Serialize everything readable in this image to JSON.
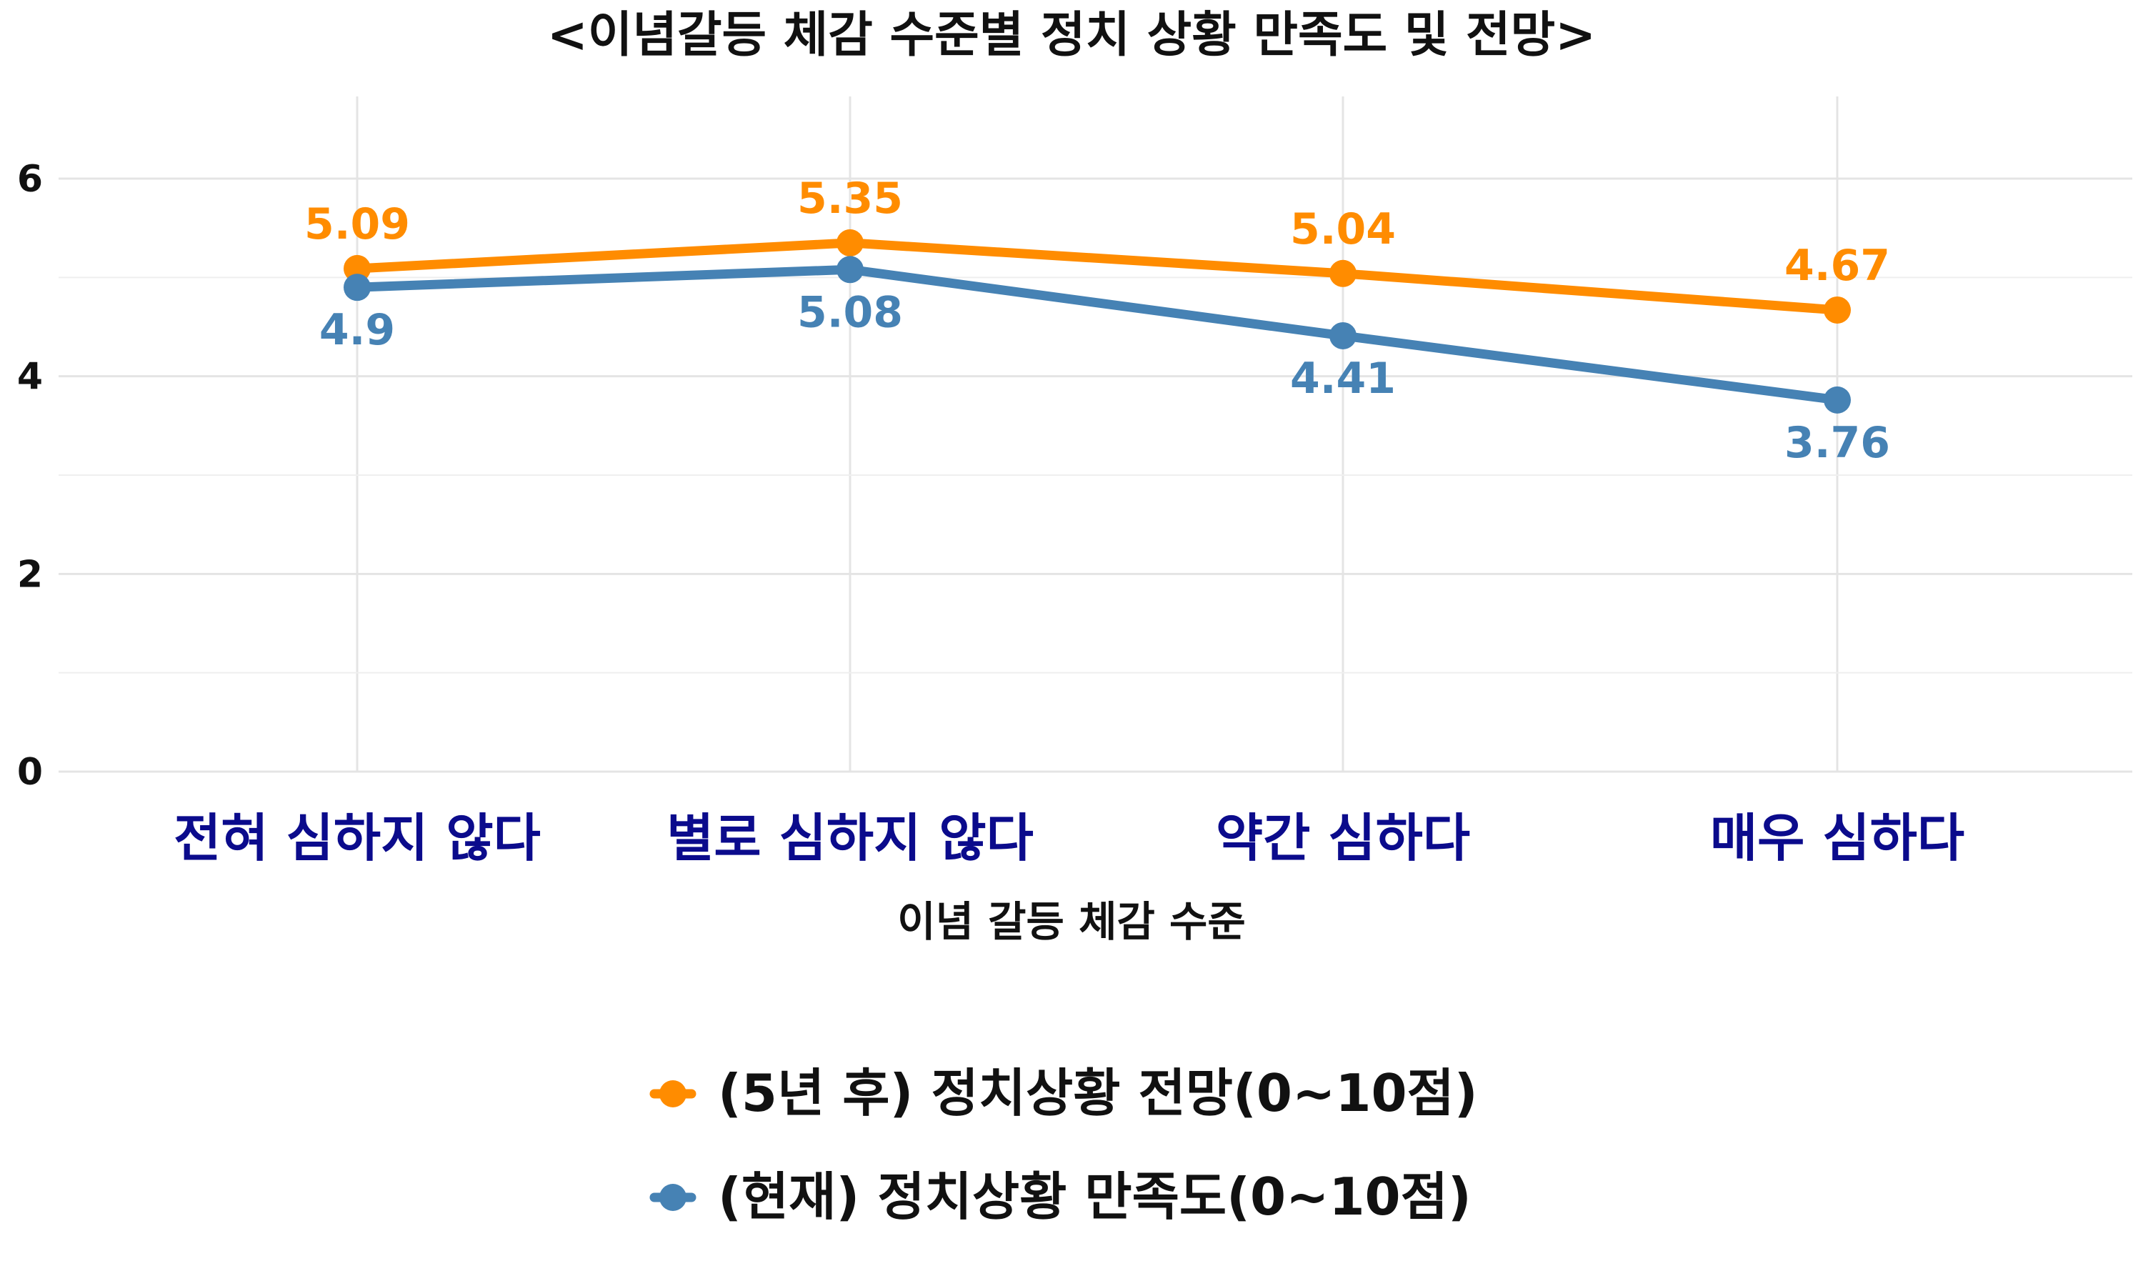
{
  "chart_data": {
    "type": "line",
    "title": "<이념갈등 체감 수준별 정치 상황 만족도 및 전망>",
    "xlabel": "이념 갈등 체감 수준",
    "ylabel": "",
    "categories": [
      "전혀 심하지 않다",
      "별로 심하지 않다",
      "약간 심하다",
      "매우 심하다"
    ],
    "ylim": [
      0,
      6.8
    ],
    "yticks": [
      0,
      2,
      4,
      6
    ],
    "grid": true,
    "legend_position": "bottom",
    "series": [
      {
        "name": "(5년 후) 정치상황 전망(0~10점)",
        "color": "#ff8c00",
        "values": [
          5.09,
          5.35,
          5.04,
          4.67
        ],
        "labels": [
          "5.09",
          "5.35",
          "5.04",
          "4.67"
        ]
      },
      {
        "name": "(현재) 정치상황 만족도(0~10점)",
        "color": "#4682b4",
        "values": [
          4.9,
          5.08,
          4.41,
          3.76
        ],
        "labels": [
          "4.9",
          "5.08",
          "4.41",
          "3.76"
        ]
      }
    ]
  }
}
